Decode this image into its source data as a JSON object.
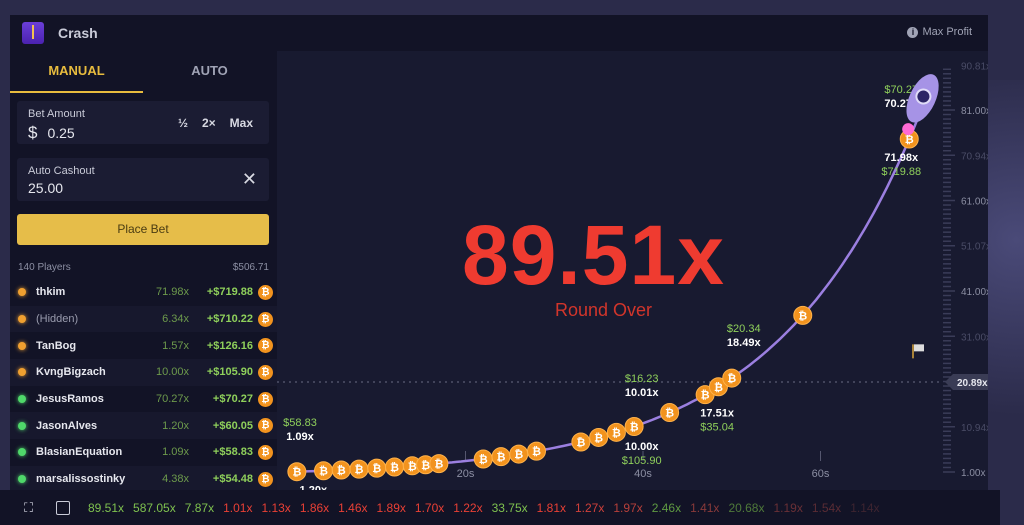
{
  "header": {
    "title": "Crash",
    "max_profit": "Max Profit"
  },
  "tabs": [
    {
      "label": "MANUAL",
      "active": true
    },
    {
      "label": "AUTO",
      "active": false
    }
  ],
  "bet": {
    "label": "Bet Amount",
    "currency": "$",
    "value": "0.25",
    "half": "½",
    "double": "2×",
    "max": "Max"
  },
  "cashout": {
    "label": "Auto Cashout",
    "value": "25.00"
  },
  "place_bet": "Place Bet",
  "players_summary": {
    "count": "140 Players",
    "total": "$506.71"
  },
  "players": [
    {
      "name": "thkim",
      "mult": "71.98x",
      "profit": "+$719.88",
      "dot": "#f0a030",
      "hidden": false
    },
    {
      "name": "(Hidden)",
      "mult": "6.34x",
      "profit": "+$710.22",
      "dot": "#f0a030",
      "hidden": true
    },
    {
      "name": "TanBog",
      "mult": "1.57x",
      "profit": "+$126.16",
      "dot": "#f0a030",
      "hidden": false
    },
    {
      "name": "KvngBigzach",
      "mult": "10.00x",
      "profit": "+$105.90",
      "dot": "#f0a030",
      "hidden": false
    },
    {
      "name": "JesusRamos",
      "mult": "70.27x",
      "profit": "+$70.27",
      "dot": "#4fd86a",
      "hidden": false
    },
    {
      "name": "JasonAlves",
      "mult": "1.20x",
      "profit": "+$60.05",
      "dot": "#4fd86a",
      "hidden": false
    },
    {
      "name": "BlasianEquation",
      "mult": "1.09x",
      "profit": "+$58.83",
      "dot": "#4fd86a",
      "hidden": false
    },
    {
      "name": "marsalissostinky",
      "mult": "4.38x",
      "profit": "+$54.48",
      "dot": "#4fd86a",
      "hidden": false
    }
  ],
  "game": {
    "multiplier": "89.51x",
    "status": "Round Over",
    "current_marker": "20.89x",
    "colors": {
      "crash": "#ef3b30",
      "curve": "#9b7fe0",
      "profit": "#8fd05b"
    }
  },
  "chart_data": {
    "type": "line",
    "y_ticks": [
      "1.00x",
      "10.94x",
      "20.89x",
      "31.00x",
      "41.00x",
      "51.07x",
      "61.00x",
      "70.94x",
      "81.00x",
      "90.81x"
    ],
    "y_tick_values": [
      1,
      10.94,
      20.89,
      31,
      41,
      51.07,
      61,
      70.94,
      81,
      90.81
    ],
    "x_ticks": [
      "20s",
      "40s",
      "60s"
    ],
    "x_tick_values": [
      20,
      40,
      60
    ],
    "cashouts": [
      {
        "mult": "1.09x",
        "profit": "$58.83",
        "t": 0,
        "above": true
      },
      {
        "mult": "1.20x",
        "profit": "",
        "t": 1.5,
        "above": false
      },
      {
        "mult": "10.01x",
        "profit": "$16.23",
        "t": 38.5,
        "above": true
      },
      {
        "mult": "10.00x",
        "profit": "$105.90",
        "t": 38.5,
        "above": false
      },
      {
        "mult": "18.49x",
        "profit": "$20.34",
        "t": 50,
        "above": true
      },
      {
        "mult": "17.51x",
        "profit": "$35.04",
        "t": 47,
        "above": false
      },
      {
        "mult": "71.98x",
        "profit": "$719.88",
        "t": 70,
        "above": false
      },
      {
        "mult": "70.27x",
        "profit": "$70.27",
        "t": 70,
        "above": true
      }
    ],
    "coin_times": [
      1,
      4,
      6,
      8,
      10,
      12,
      14,
      15.5,
      17,
      22,
      24,
      26,
      28,
      33,
      35,
      37,
      39,
      43,
      58,
      47,
      48.5,
      50,
      70
    ]
  },
  "history": [
    {
      "v": "89.51x",
      "c": "#7fc24f"
    },
    {
      "v": "587.05x",
      "c": "#7fc24f"
    },
    {
      "v": "7.87x",
      "c": "#7fc24f"
    },
    {
      "v": "1.01x",
      "c": "#e94035"
    },
    {
      "v": "1.13x",
      "c": "#e94035"
    },
    {
      "v": "1.86x",
      "c": "#e94035"
    },
    {
      "v": "1.46x",
      "c": "#e94035"
    },
    {
      "v": "1.89x",
      "c": "#e94035"
    },
    {
      "v": "1.70x",
      "c": "#e94035"
    },
    {
      "v": "1.22x",
      "c": "#e94035"
    },
    {
      "v": "33.75x",
      "c": "#7fc24f"
    },
    {
      "v": "1.81x",
      "c": "#e94035"
    },
    {
      "v": "1.27x",
      "c": "#d0403a"
    },
    {
      "v": "1.97x",
      "c": "#b8403a"
    },
    {
      "v": "2.46x",
      "c": "#5f9a42"
    },
    {
      "v": "1.41x",
      "c": "#8a3a3a"
    },
    {
      "v": "20.68x",
      "c": "#4f7a3a"
    },
    {
      "v": "1.19x",
      "c": "#6a3036"
    },
    {
      "v": "1.54x",
      "c": "#5a2c34"
    },
    {
      "v": "1.14x",
      "c": "#3e2430"
    }
  ]
}
